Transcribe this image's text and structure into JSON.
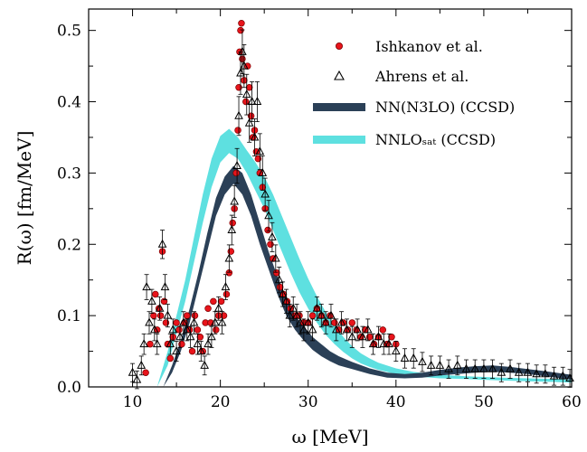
{
  "chart_data": {
    "type": "scatter",
    "xlabel": "ω [MeV]",
    "ylabel": "R(ω) [fm/MeV]",
    "xlim": [
      5,
      60
    ],
    "ylim": [
      0,
      0.53
    ],
    "xticks": [
      "10",
      "20",
      "30",
      "40",
      "50",
      "60"
    ],
    "yticks": [
      "0.0",
      "0.1",
      "0.2",
      "0.3",
      "0.4",
      "0.5"
    ],
    "grid": false,
    "legend_position": "top-right",
    "legend": {
      "ishkanov": "Ishkanov et al.",
      "ahrens": "Ahrens et al.",
      "n3lo": "NN(N3LO) (CCSD)",
      "nnlosat": "NNLOₛₐₜ (CCSD)"
    },
    "colors": {
      "ishkanov": "#e8141b",
      "ahrens": "#000000",
      "n3lo": "#2b4057",
      "nnlosat": "#5ee0e0"
    },
    "series": [
      {
        "key": "ishkanov",
        "marker": "circle",
        "points": [
          [
            11.5,
            0.02
          ],
          [
            12.0,
            0.06
          ],
          [
            12.4,
            0.1
          ],
          [
            12.6,
            0.13
          ],
          [
            12.8,
            0.08
          ],
          [
            13.0,
            0.11
          ],
          [
            13.2,
            0.1
          ],
          [
            13.4,
            0.19
          ],
          [
            13.6,
            0.12
          ],
          [
            13.8,
            0.09
          ],
          [
            14.0,
            0.06
          ],
          [
            14.3,
            0.04
          ],
          [
            14.6,
            0.07
          ],
          [
            15.0,
            0.09
          ],
          [
            15.3,
            0.08
          ],
          [
            15.6,
            0.06
          ],
          [
            15.9,
            0.09
          ],
          [
            16.2,
            0.1
          ],
          [
            16.5,
            0.08
          ],
          [
            16.8,
            0.05
          ],
          [
            17.1,
            0.1
          ],
          [
            17.4,
            0.08
          ],
          [
            17.7,
            0.07
          ],
          [
            18.0,
            0.05
          ],
          [
            18.3,
            0.09
          ],
          [
            18.6,
            0.11
          ],
          [
            18.9,
            0.09
          ],
          [
            19.2,
            0.12
          ],
          [
            19.5,
            0.08
          ],
          [
            19.8,
            0.1
          ],
          [
            20.1,
            0.12
          ],
          [
            20.4,
            0.1
          ],
          [
            20.7,
            0.13
          ],
          [
            21.0,
            0.16
          ],
          [
            21.2,
            0.19
          ],
          [
            21.4,
            0.23
          ],
          [
            21.6,
            0.25
          ],
          [
            21.8,
            0.3
          ],
          [
            22.0,
            0.36
          ],
          [
            22.1,
            0.42
          ],
          [
            22.2,
            0.47
          ],
          [
            22.3,
            0.5
          ],
          [
            22.4,
            0.51
          ],
          [
            22.5,
            0.46
          ],
          [
            22.7,
            0.43
          ],
          [
            22.9,
            0.4
          ],
          [
            23.1,
            0.45
          ],
          [
            23.3,
            0.42
          ],
          [
            23.5,
            0.38
          ],
          [
            23.7,
            0.35
          ],
          [
            23.9,
            0.36
          ],
          [
            24.1,
            0.33
          ],
          [
            24.3,
            0.32
          ],
          [
            24.5,
            0.3
          ],
          [
            24.8,
            0.28
          ],
          [
            25.1,
            0.25
          ],
          [
            25.4,
            0.22
          ],
          [
            25.7,
            0.2
          ],
          [
            26.0,
            0.18
          ],
          [
            26.4,
            0.16
          ],
          [
            26.8,
            0.14
          ],
          [
            27.2,
            0.13
          ],
          [
            27.6,
            0.12
          ],
          [
            28.0,
            0.11
          ],
          [
            28.5,
            0.1
          ],
          [
            29.0,
            0.1
          ],
          [
            29.5,
            0.09
          ],
          [
            30.0,
            0.09
          ],
          [
            30.5,
            0.1
          ],
          [
            31.0,
            0.11
          ],
          [
            31.5,
            0.1
          ],
          [
            32.0,
            0.09
          ],
          [
            32.5,
            0.1
          ],
          [
            33.0,
            0.09
          ],
          [
            33.5,
            0.08
          ],
          [
            34.0,
            0.09
          ],
          [
            34.5,
            0.08
          ],
          [
            35.0,
            0.09
          ],
          [
            35.5,
            0.08
          ],
          [
            36.0,
            0.07
          ],
          [
            36.5,
            0.08
          ],
          [
            37.0,
            0.07
          ],
          [
            37.5,
            0.06
          ],
          [
            38.0,
            0.07
          ],
          [
            38.5,
            0.08
          ],
          [
            39.0,
            0.06
          ],
          [
            39.5,
            0.07
          ],
          [
            40.0,
            0.06
          ]
        ]
      },
      {
        "key": "ahrens",
        "marker": "triangle",
        "points": [
          [
            10.0,
            0.02
          ],
          [
            10.5,
            0.01
          ],
          [
            11.0,
            0.03
          ],
          [
            11.3,
            0.06
          ],
          [
            11.6,
            0.14
          ],
          [
            11.9,
            0.09
          ],
          [
            12.2,
            0.12
          ],
          [
            12.5,
            0.08
          ],
          [
            12.8,
            0.06
          ],
          [
            13.1,
            0.11
          ],
          [
            13.4,
            0.2
          ],
          [
            13.7,
            0.14
          ],
          [
            14.0,
            0.1
          ],
          [
            14.3,
            0.06
          ],
          [
            14.6,
            0.08
          ],
          [
            15.0,
            0.05
          ],
          [
            15.4,
            0.07
          ],
          [
            15.8,
            0.09
          ],
          [
            16.2,
            0.08
          ],
          [
            16.6,
            0.07
          ],
          [
            17.0,
            0.09
          ],
          [
            17.4,
            0.06
          ],
          [
            17.8,
            0.05
          ],
          [
            18.2,
            0.03
          ],
          [
            18.6,
            0.06
          ],
          [
            19.0,
            0.07
          ],
          [
            19.4,
            0.09
          ],
          [
            19.8,
            0.11
          ],
          [
            20.2,
            0.09
          ],
          [
            20.6,
            0.14
          ],
          [
            21.0,
            0.18
          ],
          [
            21.3,
            0.22
          ],
          [
            21.6,
            0.26
          ],
          [
            21.9,
            0.31
          ],
          [
            22.1,
            0.38
          ],
          [
            22.3,
            0.44
          ],
          [
            22.5,
            0.47
          ],
          [
            22.7,
            0.45
          ],
          [
            23.0,
            0.41
          ],
          [
            23.3,
            0.37
          ],
          [
            23.6,
            0.4
          ],
          [
            23.9,
            0.35
          ],
          [
            24.2,
            0.4
          ],
          [
            24.5,
            0.33
          ],
          [
            24.8,
            0.3
          ],
          [
            25.1,
            0.27
          ],
          [
            25.5,
            0.24
          ],
          [
            25.9,
            0.21
          ],
          [
            26.3,
            0.18
          ],
          [
            26.7,
            0.15
          ],
          [
            27.1,
            0.13
          ],
          [
            27.5,
            0.12
          ],
          [
            27.9,
            0.1
          ],
          [
            28.3,
            0.11
          ],
          [
            28.7,
            0.1
          ],
          [
            29.1,
            0.09
          ],
          [
            29.5,
            0.08
          ],
          [
            30.0,
            0.09
          ],
          [
            30.5,
            0.08
          ],
          [
            31.0,
            0.11
          ],
          [
            31.5,
            0.1
          ],
          [
            32.0,
            0.09
          ],
          [
            32.6,
            0.1
          ],
          [
            33.2,
            0.08
          ],
          [
            33.8,
            0.09
          ],
          [
            34.4,
            0.08
          ],
          [
            35.0,
            0.07
          ],
          [
            35.6,
            0.08
          ],
          [
            36.2,
            0.07
          ],
          [
            36.8,
            0.08
          ],
          [
            37.4,
            0.06
          ],
          [
            38.0,
            0.07
          ],
          [
            38.6,
            0.06
          ],
          [
            39.2,
            0.06
          ],
          [
            40.0,
            0.05
          ],
          [
            41.0,
            0.04
          ],
          [
            42.0,
            0.04
          ],
          [
            43.0,
            0.035
          ],
          [
            44.0,
            0.03
          ],
          [
            45.0,
            0.03
          ],
          [
            46.0,
            0.025
          ],
          [
            47.0,
            0.03
          ],
          [
            48.0,
            0.025
          ],
          [
            49.0,
            0.025
          ],
          [
            50.0,
            0.025
          ],
          [
            51.0,
            0.025
          ],
          [
            52.0,
            0.02
          ],
          [
            53.0,
            0.025
          ],
          [
            54.0,
            0.02
          ],
          [
            55.0,
            0.02
          ],
          [
            56.0,
            0.018
          ],
          [
            57.0,
            0.018
          ],
          [
            58.0,
            0.015
          ],
          [
            59.0,
            0.015
          ],
          [
            59.8,
            0.012
          ]
        ]
      }
    ],
    "bands": [
      {
        "key": "nnlosat",
        "x": [
          12.8,
          14,
          15,
          16,
          17,
          18,
          19,
          20,
          21,
          22,
          23,
          24,
          25,
          26,
          27,
          28,
          29,
          30,
          31,
          32,
          33,
          34,
          35,
          36,
          37,
          38,
          40,
          42,
          45,
          48,
          50,
          52,
          55,
          58,
          60
        ],
        "lower": [
          0.0,
          0.03,
          0.075,
          0.12,
          0.175,
          0.23,
          0.28,
          0.315,
          0.328,
          0.32,
          0.3,
          0.275,
          0.25,
          0.22,
          0.19,
          0.16,
          0.133,
          0.11,
          0.09,
          0.073,
          0.06,
          0.049,
          0.04,
          0.033,
          0.028,
          0.024,
          0.018,
          0.015,
          0.012,
          0.011,
          0.01,
          0.009,
          0.008,
          0.007,
          0.006
        ],
        "upper": [
          0.0,
          0.05,
          0.1,
          0.15,
          0.21,
          0.27,
          0.32,
          0.352,
          0.362,
          0.35,
          0.332,
          0.315,
          0.295,
          0.27,
          0.24,
          0.21,
          0.18,
          0.152,
          0.127,
          0.105,
          0.087,
          0.07,
          0.057,
          0.047,
          0.04,
          0.034,
          0.026,
          0.021,
          0.017,
          0.015,
          0.014,
          0.013,
          0.012,
          0.011,
          0.01
        ]
      },
      {
        "key": "n3lo",
        "x": [
          13.5,
          14.5,
          15.5,
          16.5,
          17.5,
          18.5,
          19.5,
          20.5,
          21.5,
          22.5,
          23.5,
          24.5,
          25.5,
          26.5,
          27.5,
          28.5,
          29.5,
          30.5,
          31.5,
          32.5,
          33.5,
          35,
          37,
          39,
          41,
          43,
          45,
          47,
          49,
          51,
          53,
          55,
          57,
          60
        ],
        "lower": [
          0.0,
          0.02,
          0.05,
          0.09,
          0.14,
          0.19,
          0.24,
          0.27,
          0.285,
          0.27,
          0.24,
          0.2,
          0.165,
          0.13,
          0.1,
          0.08,
          0.065,
          0.052,
          0.043,
          0.036,
          0.03,
          0.025,
          0.018,
          0.013,
          0.012,
          0.013,
          0.016,
          0.018,
          0.02,
          0.021,
          0.02,
          0.018,
          0.015,
          0.01
        ],
        "upper": [
          0.0,
          0.03,
          0.065,
          0.11,
          0.16,
          0.215,
          0.265,
          0.295,
          0.31,
          0.3,
          0.27,
          0.23,
          0.19,
          0.155,
          0.125,
          0.1,
          0.085,
          0.07,
          0.06,
          0.05,
          0.043,
          0.035,
          0.026,
          0.02,
          0.018,
          0.02,
          0.024,
          0.027,
          0.029,
          0.03,
          0.028,
          0.025,
          0.022,
          0.017
        ]
      }
    ]
  }
}
